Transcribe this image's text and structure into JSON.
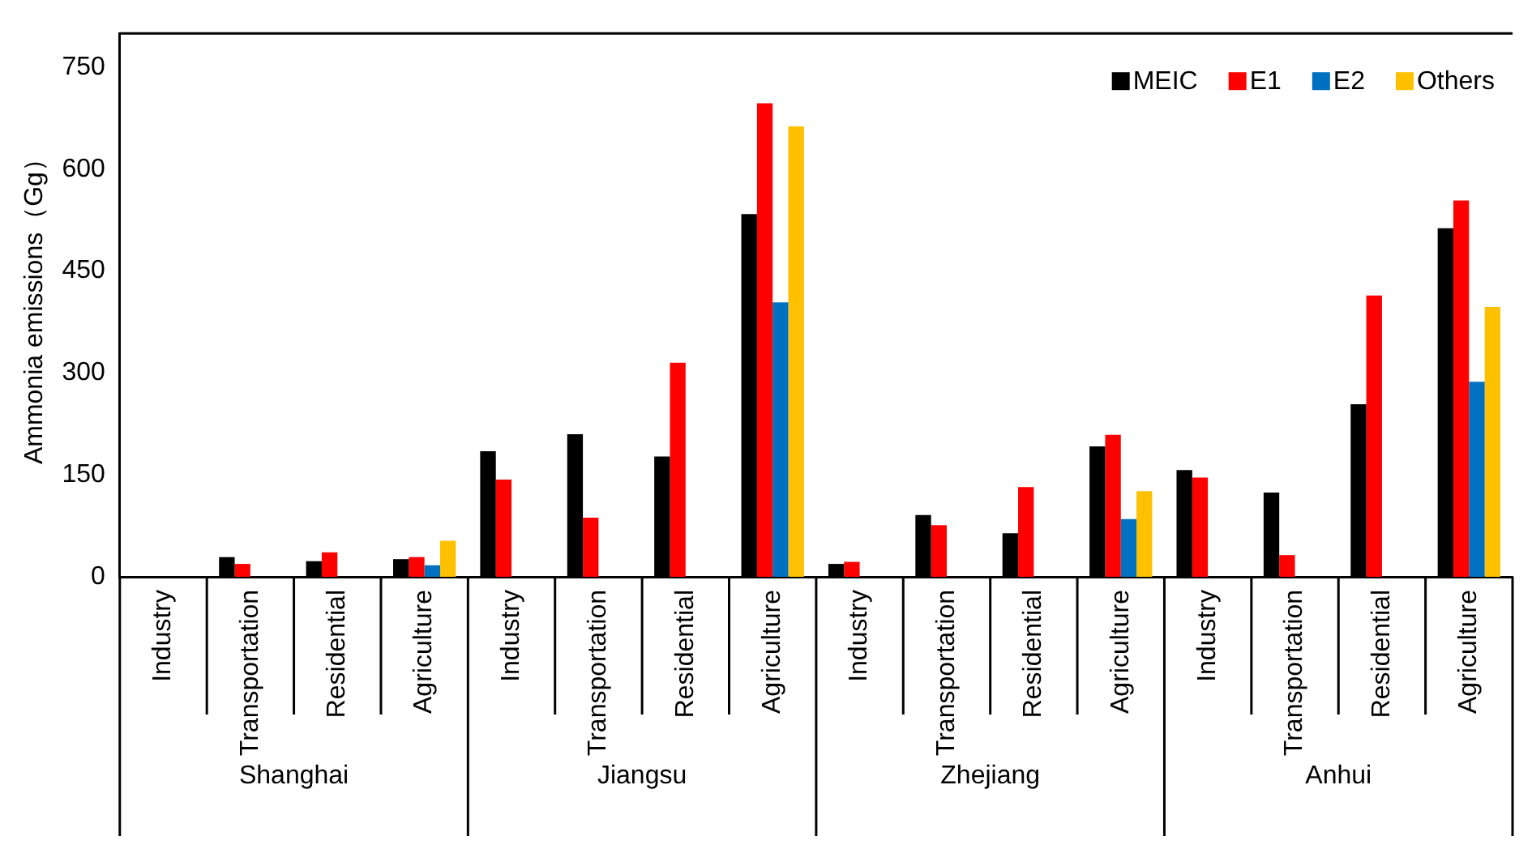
{
  "chart_data": {
    "type": "bar",
    "ylabel": "Ammonia emissions（Gg）",
    "categories": [
      "Industry",
      "Transportation",
      "Residential",
      "Agriculture",
      "Industry",
      "Transportation",
      "Residential",
      "Agriculture",
      "Industry",
      "Transportation",
      "Residential",
      "Agriculture",
      "Industry",
      "Transportation",
      "Residential",
      "Agriculture"
    ],
    "annotations": [
      "Shanghai",
      "Jiangsu",
      "Zhejiang",
      "Anhui"
    ],
    "series": [
      {
        "name": "MEIC",
        "color": "#000000",
        "values": [
          null,
          29,
          23,
          26,
          185,
          210,
          177,
          534,
          19,
          91,
          64,
          192,
          157,
          124,
          254,
          513
        ]
      },
      {
        "name": "E1",
        "color": "#ff0000",
        "values": [
          null,
          19,
          36,
          29,
          143,
          87,
          315,
          697,
          22,
          76,
          132,
          209,
          146,
          32,
          414,
          554
        ]
      },
      {
        "name": "E2",
        "color": "#0070c0",
        "values": [
          null,
          null,
          null,
          17,
          null,
          null,
          null,
          404,
          null,
          null,
          null,
          85,
          null,
          null,
          null,
          287
        ]
      },
      {
        "name": "Others",
        "color": "#ffc000",
        "values": [
          null,
          null,
          null,
          53,
          null,
          null,
          null,
          663,
          null,
          null,
          null,
          126,
          null,
          null,
          null,
          397
        ]
      }
    ],
    "ylim": [
      0,
      800
    ],
    "yticks": [
      0,
      150,
      300,
      450,
      600,
      750
    ],
    "grid": false,
    "legend": "top right"
  }
}
